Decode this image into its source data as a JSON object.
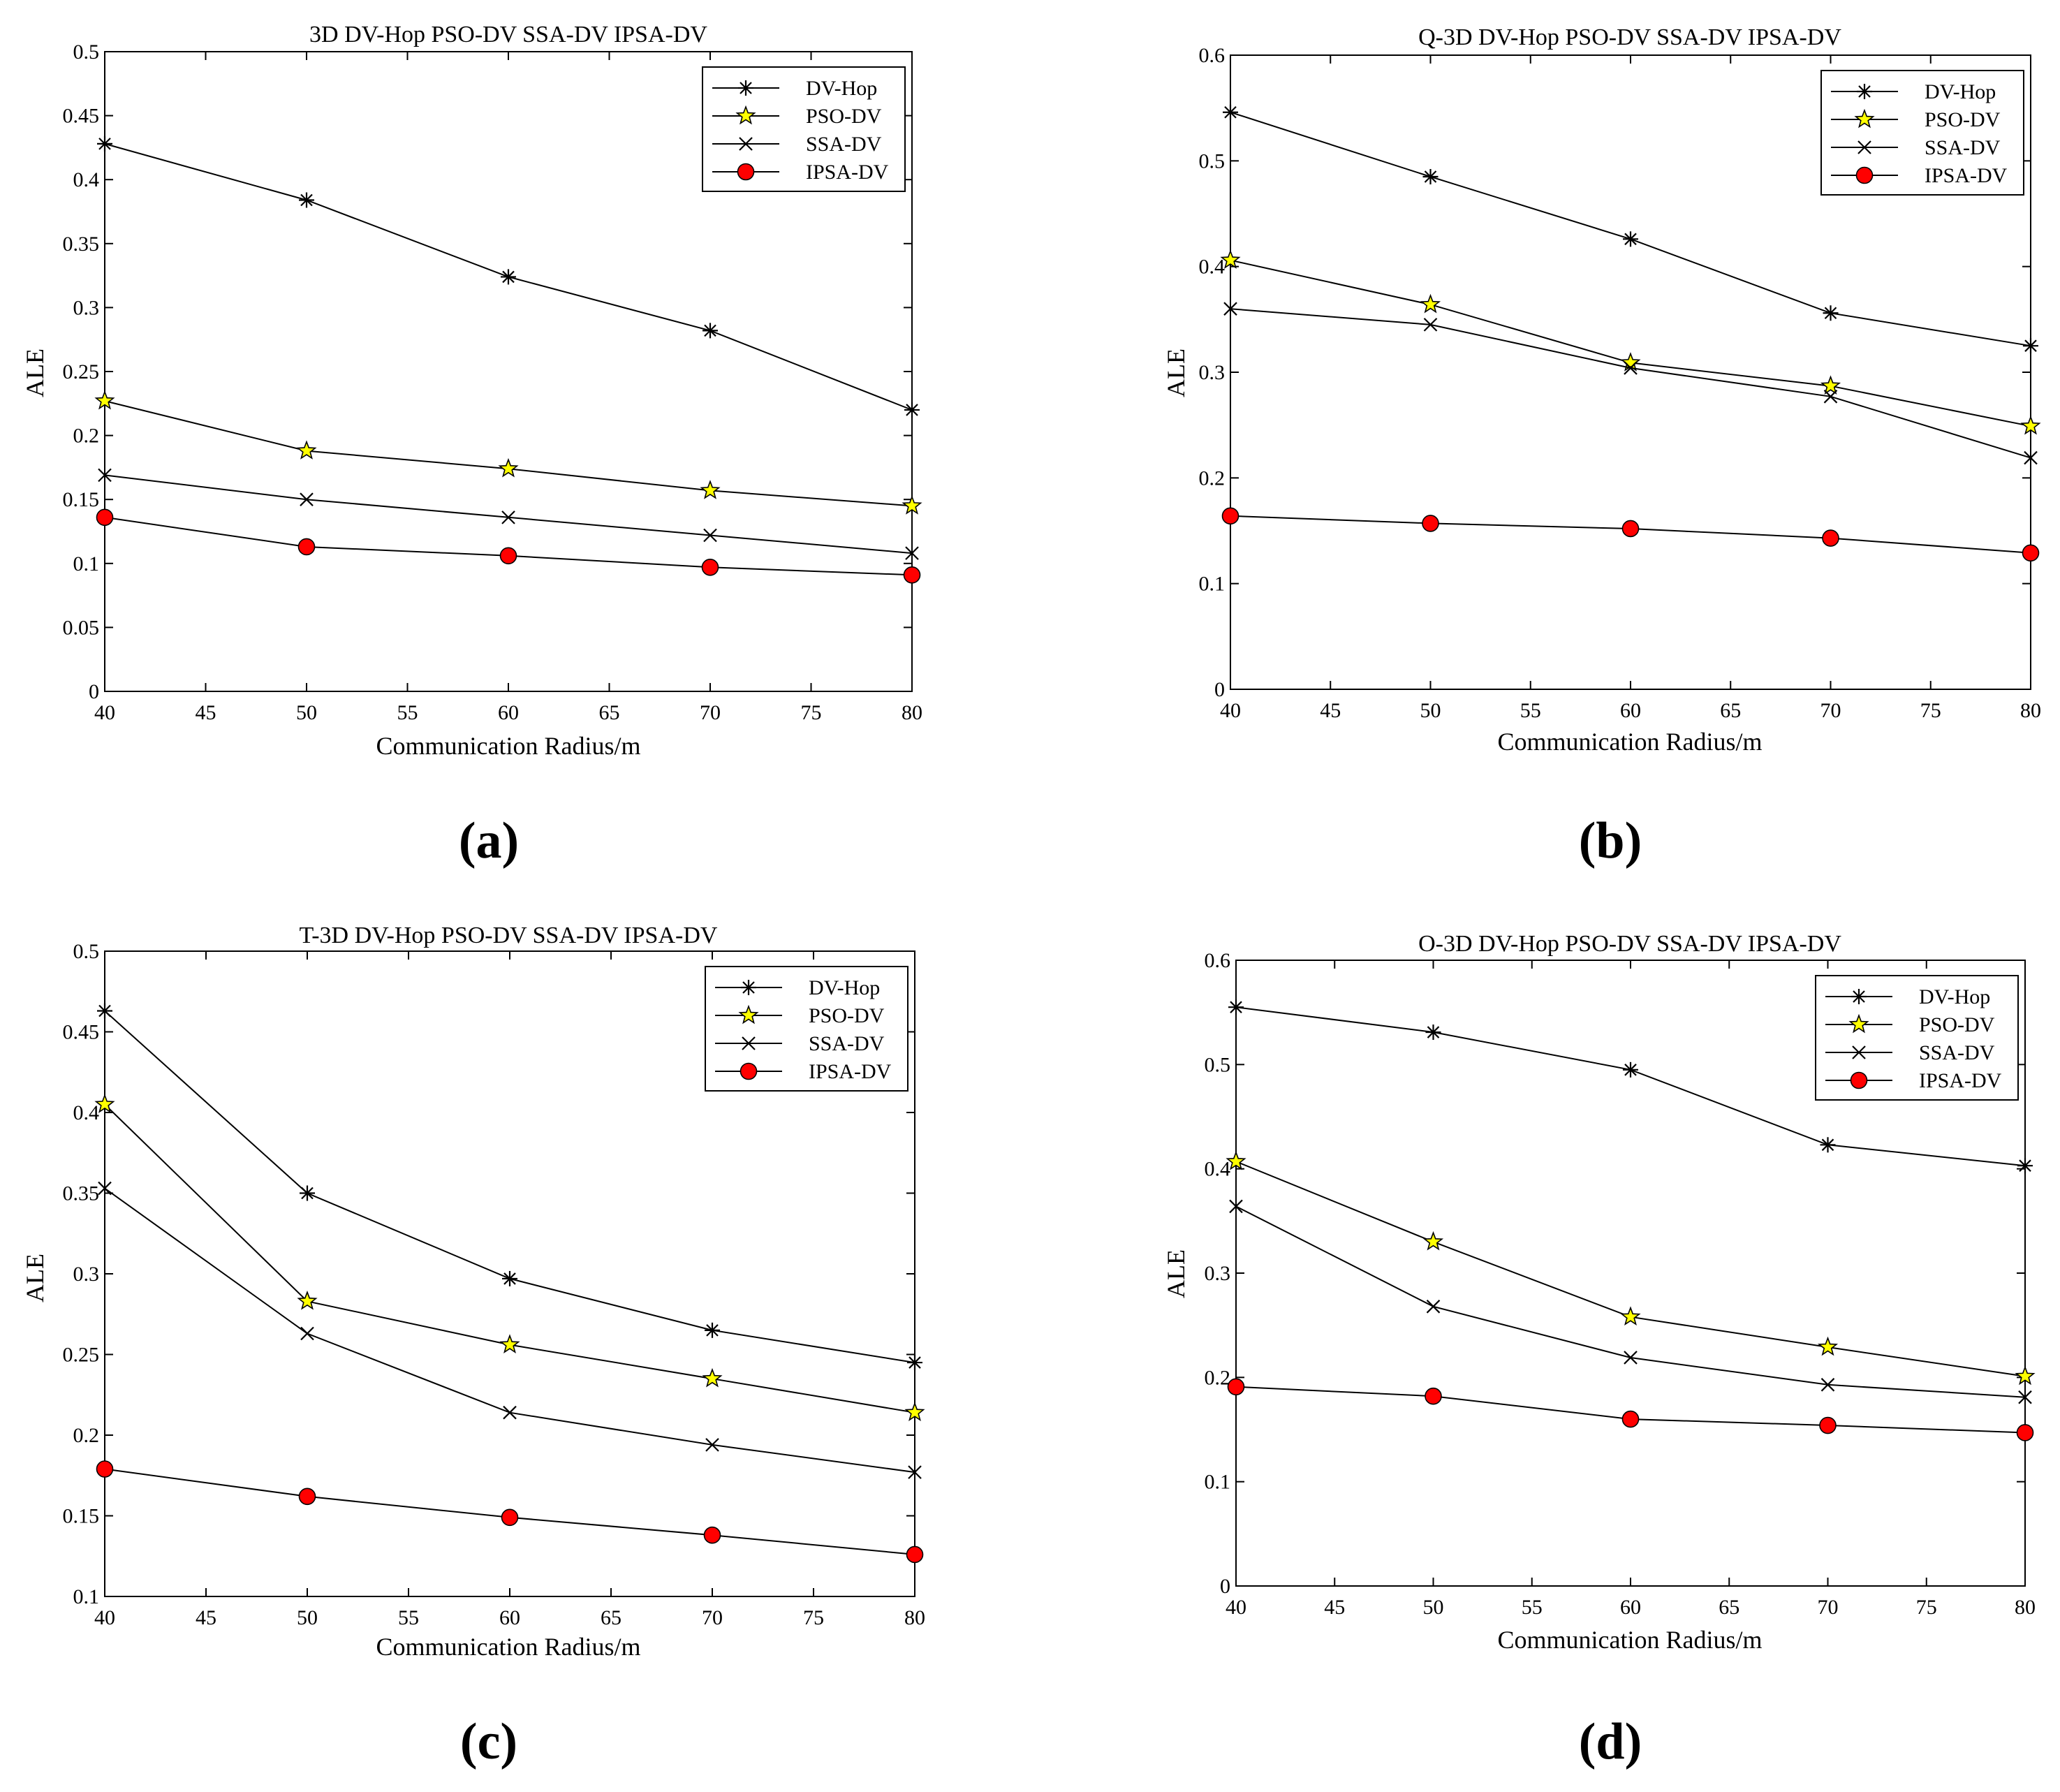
{
  "chart_data": [
    {
      "type": "line",
      "panel": "(a)",
      "title": "3D DV-Hop PSO-DV SSA-DV IPSA-DV",
      "xlabel": "Communication Radius/m",
      "ylabel": "ALE",
      "xlim": [
        40,
        80
      ],
      "ylim": [
        0,
        0.5
      ],
      "xticks": [
        "40",
        "45",
        "50",
        "55",
        "60",
        "65",
        "70",
        "75",
        "80"
      ],
      "yticks": [
        "0",
        "0.05",
        "0.1",
        "0.15",
        "0.2",
        "0.25",
        "0.3",
        "0.35",
        "0.4",
        "0.45",
        "0.5"
      ],
      "legend_position": "top-right",
      "x": [
        40,
        50,
        60,
        70,
        80
      ],
      "series": [
        {
          "name": "DV-Hop",
          "marker": "asterisk",
          "values": [
            0.428,
            0.384,
            0.324,
            0.282,
            0.22
          ]
        },
        {
          "name": "PSO-DV",
          "marker": "star",
          "values": [
            0.227,
            0.188,
            0.174,
            0.157,
            0.145
          ]
        },
        {
          "name": "SSA-DV",
          "marker": "x",
          "values": [
            0.169,
            0.15,
            0.136,
            0.122,
            0.108
          ]
        },
        {
          "name": "IPSA-DV",
          "marker": "circle",
          "values": [
            0.136,
            0.113,
            0.106,
            0.097,
            0.091
          ]
        }
      ]
    },
    {
      "type": "line",
      "panel": "(b)",
      "title": "Q-3D DV-Hop PSO-DV SSA-DV IPSA-DV",
      "xlabel": "Communication Radius/m",
      "ylabel": "ALE",
      "xlim": [
        40,
        80
      ],
      "ylim": [
        0,
        0.6
      ],
      "xticks": [
        "40",
        "45",
        "50",
        "55",
        "60",
        "65",
        "70",
        "75",
        "80"
      ],
      "yticks": [
        "0",
        "0.1",
        "0.2",
        "0.3",
        "0.4",
        "0.5",
        "0.6"
      ],
      "legend_position": "top-right",
      "x": [
        40,
        50,
        60,
        70,
        80
      ],
      "series": [
        {
          "name": "DV-Hop",
          "marker": "asterisk",
          "values": [
            0.546,
            0.485,
            0.426,
            0.356,
            0.325
          ]
        },
        {
          "name": "PSO-DV",
          "marker": "star",
          "values": [
            0.406,
            0.364,
            0.309,
            0.287,
            0.249
          ]
        },
        {
          "name": "SSA-DV",
          "marker": "x",
          "values": [
            0.36,
            0.345,
            0.304,
            0.277,
            0.219
          ]
        },
        {
          "name": "IPSA-DV",
          "marker": "circle",
          "values": [
            0.164,
            0.157,
            0.152,
            0.143,
            0.129
          ]
        }
      ]
    },
    {
      "type": "line",
      "panel": "(c)",
      "title": "T-3D DV-Hop PSO-DV SSA-DV IPSA-DV",
      "xlabel": "Communication Radius/m",
      "ylabel": "ALE",
      "xlim": [
        40,
        80
      ],
      "ylim": [
        0.1,
        0.5
      ],
      "xticks": [
        "40",
        "45",
        "50",
        "55",
        "60",
        "65",
        "70",
        "75",
        "80"
      ],
      "yticks": [
        "0.1",
        "0.15",
        "0.2",
        "0.25",
        "0.3",
        "0.35",
        "0.4",
        "0.45",
        "0.5"
      ],
      "legend_position": "top-right",
      "x": [
        40,
        50,
        60,
        70,
        80
      ],
      "series": [
        {
          "name": "DV-Hop",
          "marker": "asterisk",
          "values": [
            0.463,
            0.35,
            0.297,
            0.265,
            0.245
          ]
        },
        {
          "name": "PSO-DV",
          "marker": "star",
          "values": [
            0.405,
            0.283,
            0.256,
            0.235,
            0.214
          ]
        },
        {
          "name": "SSA-DV",
          "marker": "x",
          "values": [
            0.353,
            0.263,
            0.214,
            0.194,
            0.177
          ]
        },
        {
          "name": "IPSA-DV",
          "marker": "circle",
          "values": [
            0.179,
            0.162,
            0.149,
            0.138,
            0.126
          ]
        }
      ]
    },
    {
      "type": "line",
      "panel": "(d)",
      "title": "O-3D DV-Hop PSO-DV SSA-DV IPSA-DV",
      "xlabel": "Communication Radius/m",
      "ylabel": "ALE",
      "xlim": [
        40,
        80
      ],
      "ylim": [
        0,
        0.6
      ],
      "xticks": [
        "40",
        "45",
        "50",
        "55",
        "60",
        "65",
        "70",
        "75",
        "80"
      ],
      "yticks": [
        "0",
        "0.1",
        "0.2",
        "0.3",
        "0.4",
        "0.5",
        "0.6"
      ],
      "legend_position": "top-right",
      "x": [
        40,
        50,
        60,
        70,
        80
      ],
      "series": [
        {
          "name": "DV-Hop",
          "marker": "asterisk",
          "values": [
            0.555,
            0.531,
            0.495,
            0.423,
            0.403
          ]
        },
        {
          "name": "PSO-DV",
          "marker": "star",
          "values": [
            0.407,
            0.33,
            0.258,
            0.229,
            0.201
          ]
        },
        {
          "name": "SSA-DV",
          "marker": "x",
          "values": [
            0.364,
            0.268,
            0.219,
            0.193,
            0.181
          ]
        },
        {
          "name": "IPSA-DV",
          "marker": "circle",
          "values": [
            0.191,
            0.182,
            0.16,
            0.154,
            0.147
          ]
        }
      ]
    }
  ],
  "colors": {
    "line": "#000000",
    "star_fill": "#ffff00",
    "circle_fill": "#ff0000"
  }
}
